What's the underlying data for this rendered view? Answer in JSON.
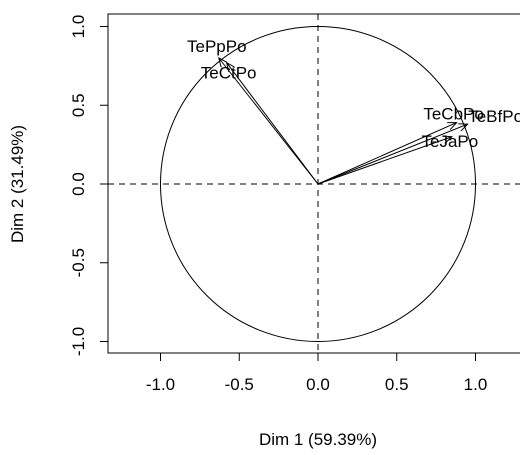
{
  "chart_data": {
    "type": "scatter",
    "subtype": "pca-correlation-circle",
    "title": "",
    "xlabel": "Dim 1 (59.39%)",
    "ylabel": "Dim 2 (31.49%)",
    "xlim": [
      -1.3,
      1.3
    ],
    "ylim": [
      -1.05,
      1.05
    ],
    "x_ticks": [
      -1.0,
      -0.5,
      0.0,
      0.5,
      1.0
    ],
    "x_tick_labels": [
      "-1.0",
      "-0.5",
      "0.0",
      "0.5",
      "1.0"
    ],
    "y_ticks": [
      -1.0,
      -0.5,
      0.0,
      0.5,
      1.0
    ],
    "y_tick_labels": [
      "-1.0",
      "-0.5",
      "0.0",
      "0.5",
      "1.0"
    ],
    "grid": false,
    "reference_lines": {
      "x": 0,
      "y": 0,
      "style": "dashed"
    },
    "unit_circle_radius": 1.0,
    "variables": [
      {
        "label": "TePpPo",
        "x": -0.63,
        "y": 0.8
      },
      {
        "label": "TeCtPo",
        "x": -0.58,
        "y": 0.77
      },
      {
        "label": "TeCbPo",
        "x": 0.88,
        "y": 0.39
      },
      {
        "label": "TeBfPo",
        "x": 0.95,
        "y": 0.38
      },
      {
        "label": "TeJaPo",
        "x": 0.85,
        "y": 0.3
      }
    ],
    "colors": {
      "arrows": "#000000",
      "circle": "#000000",
      "axes": "#000000"
    }
  }
}
